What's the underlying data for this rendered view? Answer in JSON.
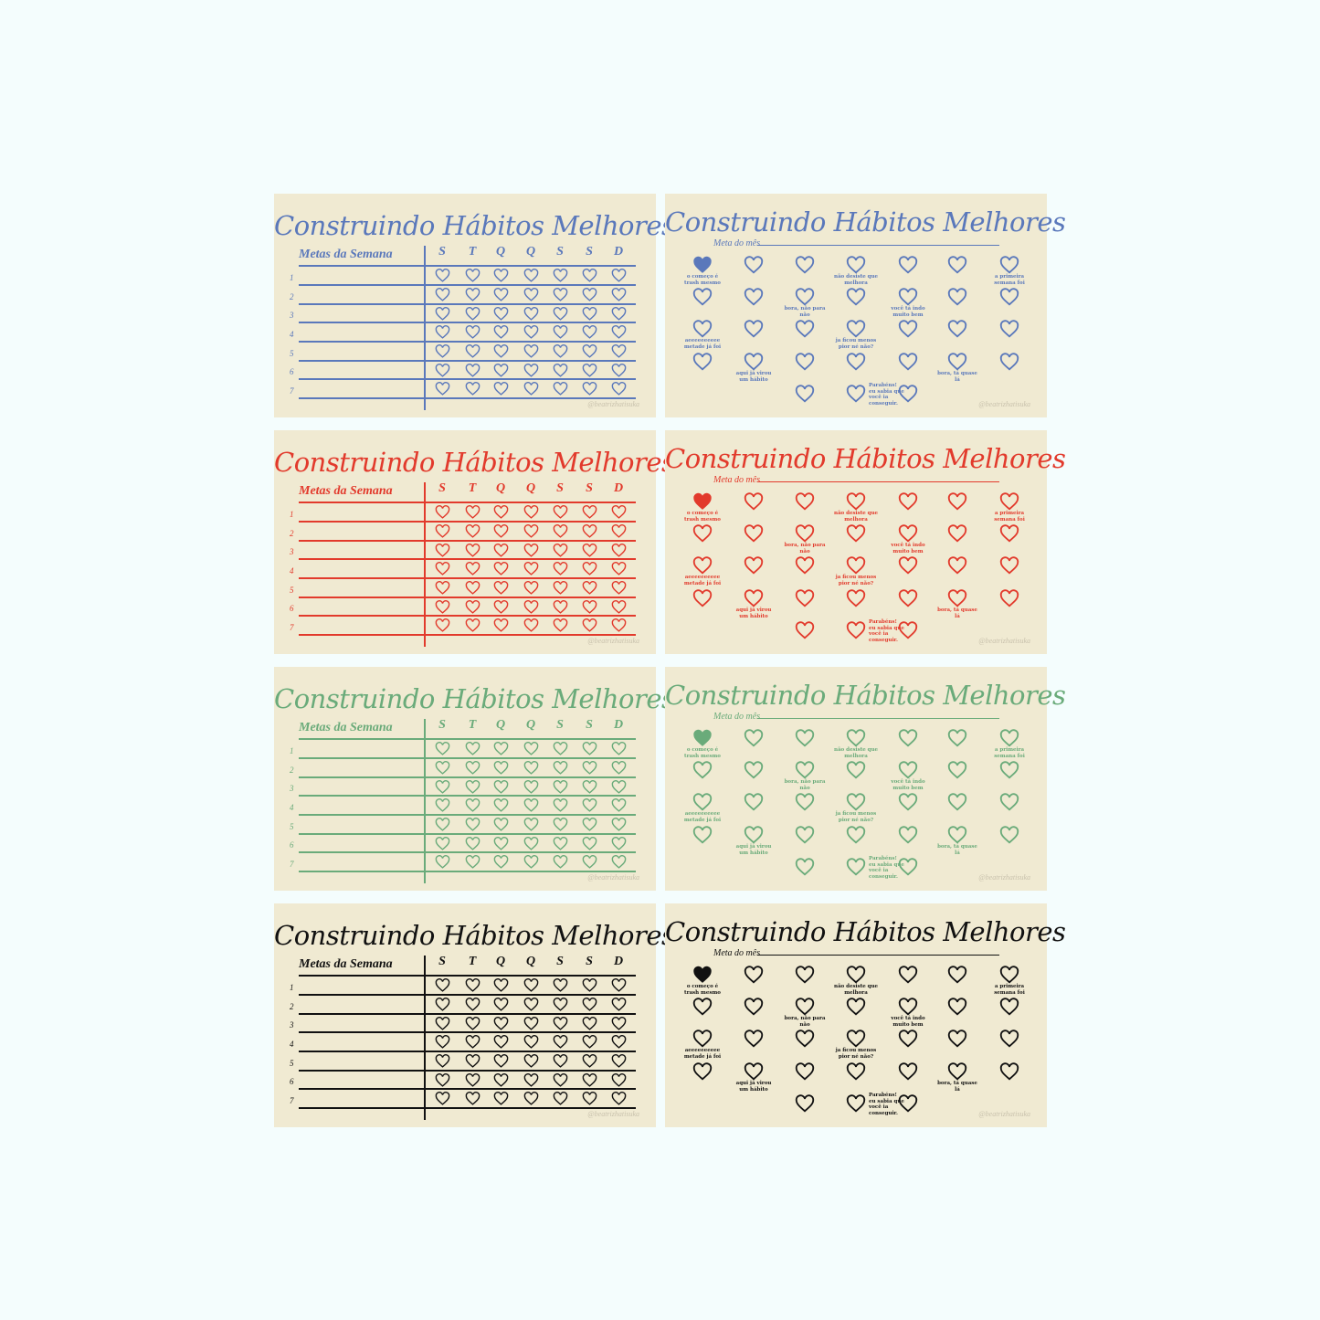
{
  "title": "Construindo Hábitos Melhores",
  "weekly": {
    "goals_label": "Metas da Semana",
    "days": [
      "S",
      "T",
      "Q",
      "Q",
      "S",
      "S",
      "D"
    ],
    "row_numbers": [
      "1",
      "2",
      "3",
      "4",
      "5",
      "6",
      "7"
    ]
  },
  "monthly": {
    "goal_label": "Meta do mês",
    "milestones": [
      {
        "text": "o começo é trash mesmo",
        "col": 0,
        "row": 0
      },
      {
        "text": "não desiste que melhora",
        "col": 3,
        "row": 0
      },
      {
        "text": "a primeira semana foi",
        "col": 6,
        "row": 0
      },
      {
        "text": "bora, não para não",
        "col": 2,
        "row": 1
      },
      {
        "text": "você tá indo muito bem",
        "col": 4,
        "row": 1
      },
      {
        "text": "aeeeeeeeeee metade já foi",
        "col": 0,
        "row": 2
      },
      {
        "text": "ja ficou menos pior né não?",
        "col": 3,
        "row": 2
      },
      {
        "text": "aqui já virou um hábito",
        "col": 1,
        "row": 3
      },
      {
        "text": "bora, tá quase lá",
        "col": 5,
        "row": 3
      },
      {
        "text": "Parabéns! eu sabia que você ia conseguir.",
        "col": 3,
        "row": 4,
        "side": "right"
      }
    ],
    "filled_hearts": 1
  },
  "credit": "@beatrizhatisuka",
  "themes": [
    {
      "name": "blue",
      "color": "#5a78bb"
    },
    {
      "name": "red",
      "color": "#e23a2c"
    },
    {
      "name": "green",
      "color": "#6aab7a"
    },
    {
      "name": "black",
      "color": "#111111"
    }
  ]
}
